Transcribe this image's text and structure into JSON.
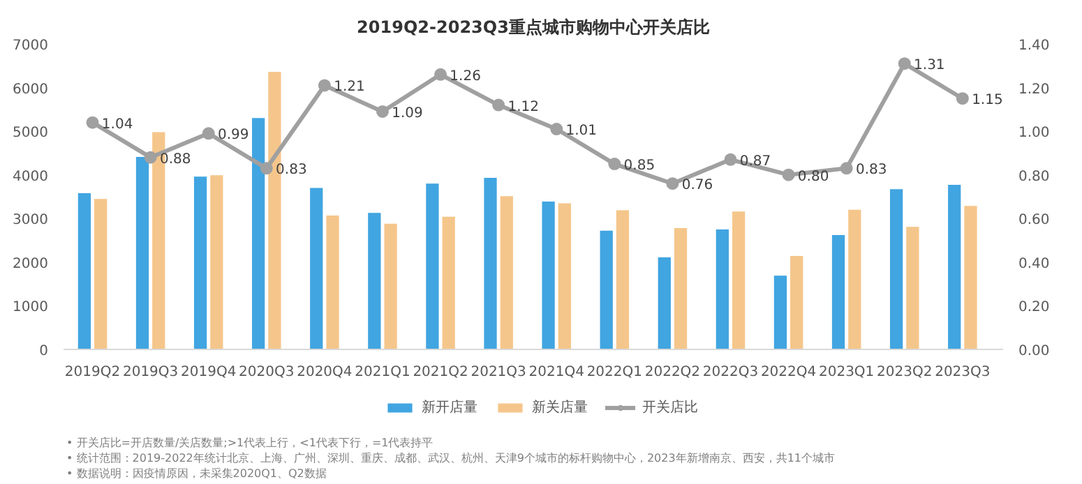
{
  "chart_data": {
    "type": "bar",
    "title": "2019Q2-2023Q3重点城市购物中心开关店比",
    "categories": [
      "2019Q2",
      "2019Q3",
      "2019Q4",
      "2020Q3",
      "2020Q4",
      "2021Q1",
      "2021Q2",
      "2021Q3",
      "2021Q4",
      "2022Q1",
      "2022Q2",
      "2022Q3",
      "2022Q4",
      "2023Q1",
      "2023Q2",
      "2023Q3"
    ],
    "series": [
      {
        "name": "新开店量",
        "color": "#41a5e1",
        "values": [
          3580,
          4410,
          3960,
          5300,
          3700,
          3130,
          3800,
          3930,
          3390,
          2720,
          2110,
          2750,
          1690,
          2620,
          3670,
          3770
        ]
      },
      {
        "name": "新关店量",
        "color": "#f5c68b",
        "values": [
          3450,
          4980,
          3990,
          6360,
          3070,
          2880,
          3040,
          3510,
          3350,
          3190,
          2780,
          3160,
          2140,
          3200,
          2810,
          3290
        ]
      },
      {
        "name": "开关店比",
        "type": "line",
        "axis": "y2",
        "color": "#a0a0a0",
        "marker": "circle",
        "values": [
          1.04,
          0.88,
          0.99,
          0.83,
          1.21,
          1.09,
          1.26,
          1.12,
          1.01,
          0.85,
          0.76,
          0.87,
          0.8,
          0.83,
          1.31,
          1.15
        ],
        "value_labels": [
          "1.04",
          "0.88",
          "0.99",
          "0.83",
          "1.21",
          "1.09",
          "1.26",
          "1.12",
          "1.01",
          "0.85",
          "0.76",
          "0.87",
          "0.80",
          "0.83",
          "1.31",
          "1.15"
        ]
      }
    ],
    "ylim": [
      0,
      7000
    ],
    "yticks": [
      0,
      1000,
      2000,
      3000,
      4000,
      5000,
      6000,
      7000
    ],
    "y2lim": [
      0,
      1.4
    ],
    "y2ticks": [
      {
        "value": 0,
        "label": "0.00"
      },
      {
        "value": 0.2,
        "label": "0.20"
      },
      {
        "value": 0.4,
        "label": "0.40"
      },
      {
        "value": 0.6,
        "label": "0.60"
      },
      {
        "value": 0.8,
        "label": "0.80"
      },
      {
        "value": 1.0,
        "label": "1.00"
      },
      {
        "value": 1.2,
        "label": "1.20"
      },
      {
        "value": 1.4,
        "label": "1.40"
      }
    ],
    "grid": false,
    "legend": "bottom",
    "annotations": [
      "•   开关店比=开店数量/关店数量;>1代表上行，<1代表下行，=1代表持平",
      "•   统计范围：2019-2022年统计北京、上海、广州、深圳、重庆、成都、武汉、杭州、天津9个城市的标杆购物中心，2023年新增南京、西安，共11个城市",
      "•   数据说明：因疫情原因，未采集2020Q1、Q2数据"
    ]
  }
}
